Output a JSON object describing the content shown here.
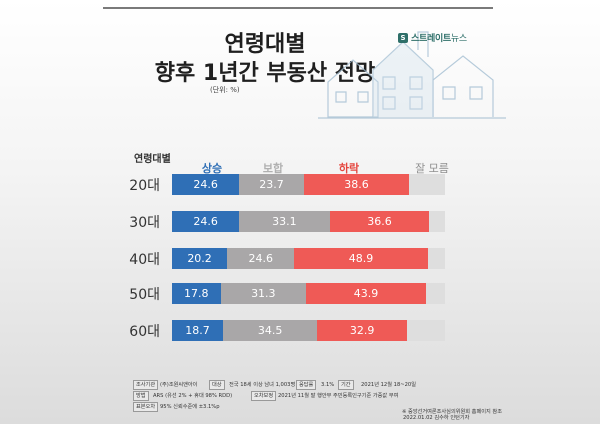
{
  "header": {
    "title_line1": "연령대별",
    "title_line2": "향후 1년간 부동산 전망",
    "unit": "(단위: %)"
  },
  "logo": {
    "mark": "S",
    "name_bold": "스트레이트",
    "name_thin": "뉴스"
  },
  "chart_data": {
    "type": "bar",
    "stacked": true,
    "orientation": "horizontal",
    "row_header": "연령대별",
    "categories": [
      "20대",
      "30대",
      "40대",
      "50대",
      "60대"
    ],
    "series": [
      {
        "name": "상승",
        "color": "#2f6fb6",
        "values": [
          24.6,
          24.6,
          20.2,
          17.8,
          18.7
        ]
      },
      {
        "name": "보합",
        "color": "#a9a7a8",
        "values": [
          23.7,
          33.1,
          24.6,
          31.3,
          34.5
        ]
      },
      {
        "name": "하락",
        "color": "#ef5a56",
        "values": [
          38.6,
          36.6,
          48.9,
          43.9,
          32.9
        ]
      },
      {
        "name": "잘 모름",
        "color": "#dedede",
        "values": [
          13.1,
          5.7,
          6.3,
          7.0,
          13.9
        ]
      }
    ],
    "header_colors": [
      "#2f6fb6",
      "#b0b0b0",
      "#e5473f",
      "#8f8f8f"
    ],
    "show_labels_for": [
      "상승",
      "보합",
      "하락"
    ],
    "xlim": [
      0,
      100
    ]
  },
  "footer": {
    "row1": {
      "label1": "조사기관",
      "value1": "(주)조원씨앤아이",
      "label2": "대상",
      "value2": "전국 18세 이상 남녀 1,003명",
      "label3": "응답률",
      "value3": "3.1%",
      "label4": "기간",
      "value4": "2021년 12월 18~20일"
    },
    "row2": {
      "label1": "방법",
      "value1": "ARS (유선 2% + 휴대 98% RDD)",
      "label2": "오차보정",
      "value2": "2021년 11월 말 행안부 주민등록인구기준 가중값 부여"
    },
    "row3": {
      "label1": "표본오차",
      "value1": "95% 신뢰수준에 ±3.1%p"
    },
    "source_note": "※ 중앙선거여론조사심의위원회 홈페이지 참조",
    "date_line": "2022.01.02  김수하 인턴기자"
  }
}
